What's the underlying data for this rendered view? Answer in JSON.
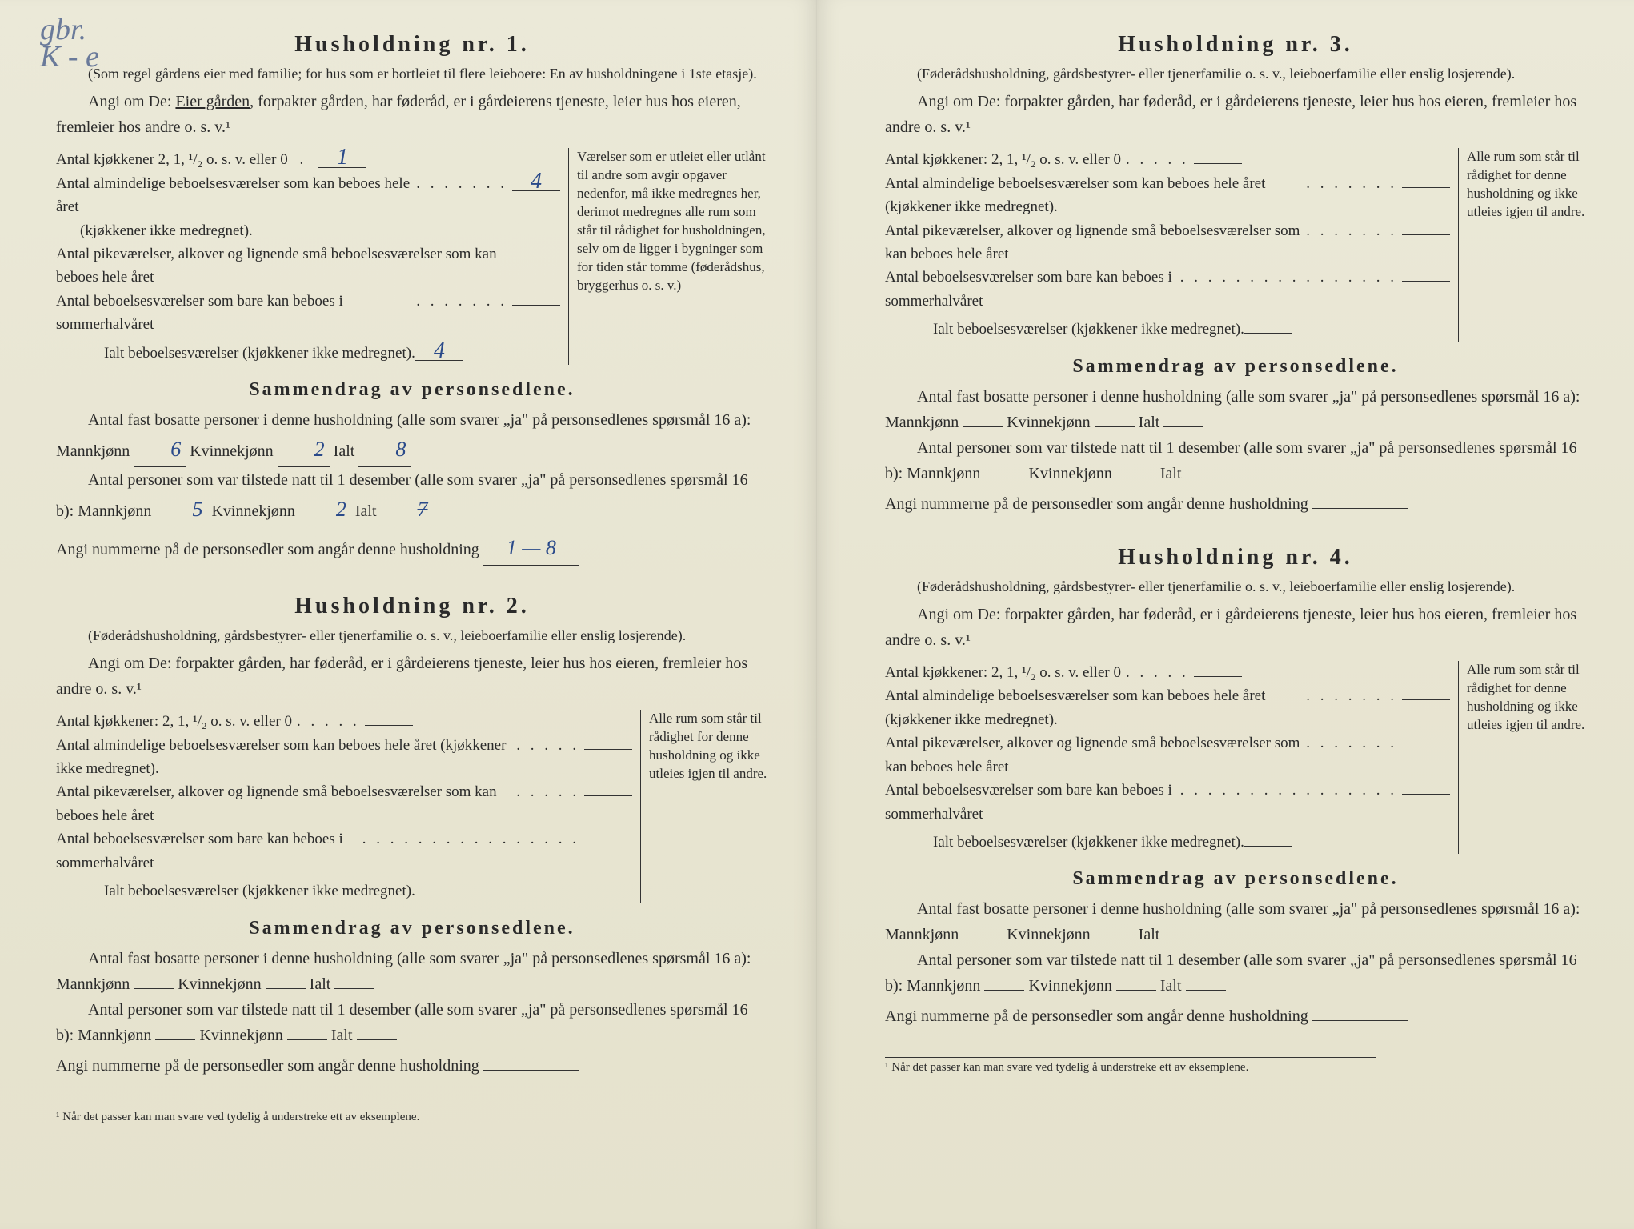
{
  "handwriting_corner": "gbr.\nK - e",
  "households": [
    {
      "title": "Husholdning nr. 1.",
      "sub": "(Som regel gårdens eier med familie; for hus som er bortleiet til flere leieboere: En av husholdningene i 1ste etasje).",
      "angi_pre": "Angi om De: ",
      "angi_underlined": "Eier gården",
      "angi_post": ", forpakter gården, har føderåd, er i gårdeierens tjeneste, leier hus hos eieren, fremleier hos andre o. s. v.¹",
      "rooms": {
        "kitchen_label": "Antal kjøkkener 2, 1, ¹/₂ o. s. v. eller 0",
        "kitchen_val": "1",
        "ordinary_label": "Antal almindelige beboelsesværelser som kan beboes hele året",
        "ordinary_sub": "(kjøkkener ikke medregnet).",
        "ordinary_val": "4",
        "pike_label": "Antal pikeværelser, alkover og lignende små beboelsesværelser som kan beboes hele året",
        "pike_val": "",
        "summer_label": "Antal beboelsesværelser som bare kan beboes i sommerhalvåret",
        "summer_val": "",
        "total_label": "Ialt beboelsesværelser (kjøkkener ikke medregnet).",
        "total_val": "4"
      },
      "side_note": "Værelser som er utleiet eller utlånt til andre som avgir opgaver nedenfor, må ikke medregnes her, derimot medregnes alle rum som står til rådighet for husholdningen, selv om de ligger i bygninger som for tiden står tomme (føderådshus, bryggerhus o. s. v.)",
      "summary_title": "Sammendrag av personsedlene.",
      "fast_label": "Antal fast bosatte personer i denne husholdning (alle som svarer „ja\" på personsedlenes spørsmål 16 a): Mannkjønn",
      "fast_m": "6",
      "fast_k_label": "Kvinnekjønn",
      "fast_k": "2",
      "fast_ialt_label": "Ialt",
      "fast_ialt": "8",
      "tilstede_label": "Antal personer som var tilstede natt til 1 desember (alle som svarer „ja\" på personsedlenes spørsmål 16 b): Mannkjønn",
      "tilstede_m": "5",
      "tilstede_k": "2",
      "tilstede_ialt": "7",
      "nummer_label": "Angi nummerne på de personsedler som angår denne husholdning",
      "nummer_val": "1 — 8"
    },
    {
      "title": "Husholdning nr. 2.",
      "sub": "(Føderådshusholdning, gårdsbestyrer- eller tjenerfamilie o. s. v., leieboerfamilie eller enslig losjerende).",
      "angi": "Angi om De:  forpakter gården, har føderåd, er i gårdeierens tjeneste, leier hus hos eieren, fremleier hos andre o. s. v.¹",
      "rooms": {
        "kitchen_label": "Antal kjøkkener: 2, 1, ¹/₂ o. s. v. eller 0",
        "ordinary_label": "Antal almindelige beboelsesværelser som kan beboes hele året (kjøkkener ikke medregnet).",
        "pike_label": "Antal pikeværelser, alkover og lignende små beboelsesværelser som kan beboes hele året",
        "summer_label": "Antal beboelsesværelser som bare kan beboes i sommerhalvåret",
        "total_label": "Ialt beboelsesværelser (kjøkkener ikke medregnet)."
      },
      "side_note": "Alle rum som står til rådighet for denne husholdning og ikke utleies igjen til andre.",
      "summary_title": "Sammendrag av personsedlene.",
      "fast_label": "Antal fast bosatte personer i denne husholdning (alle som svarer „ja\" på personsedlenes spørsmål 16 a): Mannkjønn",
      "fast_k_label": "Kvinnekjønn",
      "fast_ialt_label": "Ialt",
      "tilstede_label": "Antal personer som var tilstede natt til 1 desember (alle som svarer „ja\" på personsedlenes spørsmål 16 b): Mannkjønn",
      "nummer_label": "Angi nummerne på de personsedler som angår denne husholdning"
    },
    {
      "title": "Husholdning nr. 3.",
      "sub": "(Føderådshusholdning, gårdsbestyrer- eller tjenerfamilie o. s. v., leieboerfamilie eller enslig losjerende).",
      "angi": "Angi om De:  forpakter gården, har føderåd, er i gårdeierens tjeneste, leier hus hos eieren, fremleier hos andre o. s. v.¹",
      "rooms": {
        "kitchen_label": "Antal kjøkkener: 2, 1, ¹/₂ o. s. v. eller 0",
        "ordinary_label": "Antal almindelige beboelsesværelser som kan beboes hele året (kjøkkener ikke medregnet).",
        "pike_label": "Antal pikeværelser, alkover og lignende små beboelsesværelser som kan beboes hele året",
        "summer_label": "Antal beboelsesværelser som bare kan beboes i sommerhalvåret",
        "total_label": "Ialt beboelsesværelser (kjøkkener ikke medregnet)."
      },
      "side_note": "Alle rum som står til rådighet for denne husholdning og ikke utleies igjen til andre.",
      "summary_title": "Sammendrag av personsedlene.",
      "fast_label": "Antal fast bosatte personer i denne husholdning (alle som svarer „ja\" på personsedlenes spørsmål 16 a): Mannkjønn",
      "fast_k_label": "Kvinnekjønn",
      "fast_ialt_label": "Ialt",
      "tilstede_label": "Antal personer som var tilstede natt til 1 desember (alle som svarer „ja\" på personsedlenes spørsmål 16 b): Mannkjønn",
      "nummer_label": "Angi nummerne på de personsedler som angår denne husholdning"
    },
    {
      "title": "Husholdning nr. 4.",
      "sub": "(Føderådshusholdning, gårdsbestyrer- eller tjenerfamilie o. s. v., leieboerfamilie eller enslig losjerende).",
      "angi": "Angi om De:  forpakter gården, har føderåd, er i gårdeierens tjeneste, leier hus hos eieren, fremleier hos andre o. s. v.¹",
      "rooms": {
        "kitchen_label": "Antal kjøkkener: 2, 1, ¹/₂ o. s. v. eller 0",
        "ordinary_label": "Antal almindelige beboelsesværelser som kan beboes hele året (kjøkkener ikke medregnet).",
        "pike_label": "Antal pikeværelser, alkover og lignende små beboelsesværelser som kan beboes hele året",
        "summer_label": "Antal beboelsesværelser som bare kan beboes i sommerhalvåret",
        "total_label": "Ialt beboelsesværelser (kjøkkener ikke medregnet)."
      },
      "side_note": "Alle rum som står til rådighet for denne husholdning og ikke utleies igjen til andre.",
      "summary_title": "Sammendrag av personsedlene.",
      "fast_label": "Antal fast bosatte personer i denne husholdning (alle som svarer „ja\" på personsedlenes spørsmål 16 a): Mannkjønn",
      "fast_k_label": "Kvinnekjønn",
      "fast_ialt_label": "Ialt",
      "tilstede_label": "Antal personer som var tilstede natt til 1 desember (alle som svarer „ja\" på personsedlenes spørsmål 16 b): Mannkjønn",
      "nummer_label": "Angi nummerne på de personsedler som angår denne husholdning"
    }
  ],
  "footnote": "¹ Når det passer kan man svare ved tydelig å understreke ett av eksemplene.",
  "dots3": ". . .",
  "dots5": ". . . . .",
  "dots7": ". . . . . . .",
  "dots_long": ". . . . . . . . . . . . . . . ."
}
